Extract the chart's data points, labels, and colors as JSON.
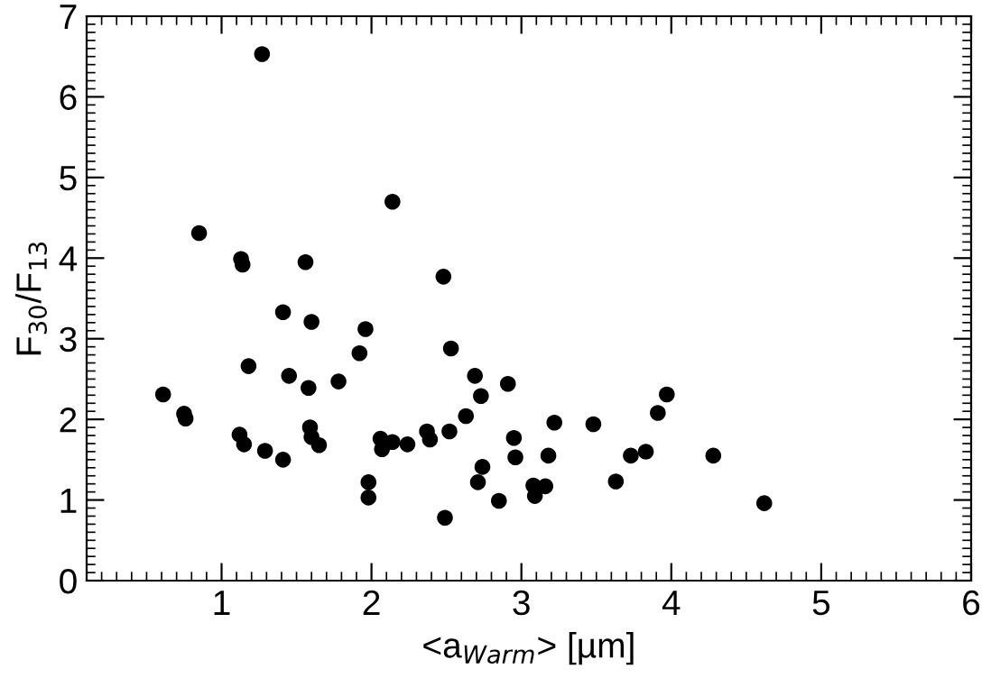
{
  "chart_data": {
    "type": "scatter",
    "xlabel": "<a$_{Warm}$> [µm]",
    "ylabel": "F$_{30}$/F$_{13}$",
    "xlim": [
      0.1,
      6
    ],
    "ylim": [
      0,
      7
    ],
    "xticks": [
      1,
      2,
      3,
      4,
      5,
      6
    ],
    "yticks": [
      0,
      1,
      2,
      3,
      4,
      5,
      6,
      7
    ],
    "marker": "circle",
    "series": [
      {
        "color": "#000000",
        "x": [
          1.27,
          2.14,
          0.85,
          1.13,
          1.14,
          1.56,
          2.48,
          1.41,
          1.6,
          1.96,
          1.92,
          2.53,
          1.18,
          1.45,
          1.58,
          1.78,
          0.61,
          0.75,
          0.76,
          1.12,
          1.15,
          1.29,
          1.41,
          1.59,
          1.6,
          1.65,
          1.98,
          1.98,
          2.06,
          2.07,
          2.14,
          2.24,
          2.37,
          2.39,
          2.52,
          2.49,
          2.63,
          2.69,
          2.73,
          2.91,
          2.95,
          2.96,
          2.74,
          2.71,
          2.85,
          3.08,
          3.09,
          3.16,
          3.18,
          3.22,
          3.48,
          3.63,
          3.73,
          3.83,
          3.91,
          3.97,
          4.28,
          4.62
        ],
        "values": [
          6.53,
          4.7,
          4.31,
          3.99,
          3.92,
          3.95,
          3.77,
          3.33,
          3.21,
          3.12,
          2.82,
          2.88,
          2.66,
          2.54,
          2.39,
          2.47,
          2.31,
          2.07,
          2.01,
          1.81,
          1.69,
          1.61,
          1.5,
          1.9,
          1.78,
          1.68,
          1.22,
          1.03,
          1.76,
          1.63,
          1.72,
          1.69,
          1.85,
          1.75,
          1.85,
          0.78,
          2.04,
          2.54,
          2.29,
          2.44,
          1.77,
          1.53,
          1.41,
          1.22,
          0.99,
          1.18,
          1.05,
          1.17,
          1.55,
          1.96,
          1.94,
          1.23,
          1.55,
          1.6,
          2.08,
          2.31,
          1.55,
          0.96
        ]
      }
    ]
  }
}
